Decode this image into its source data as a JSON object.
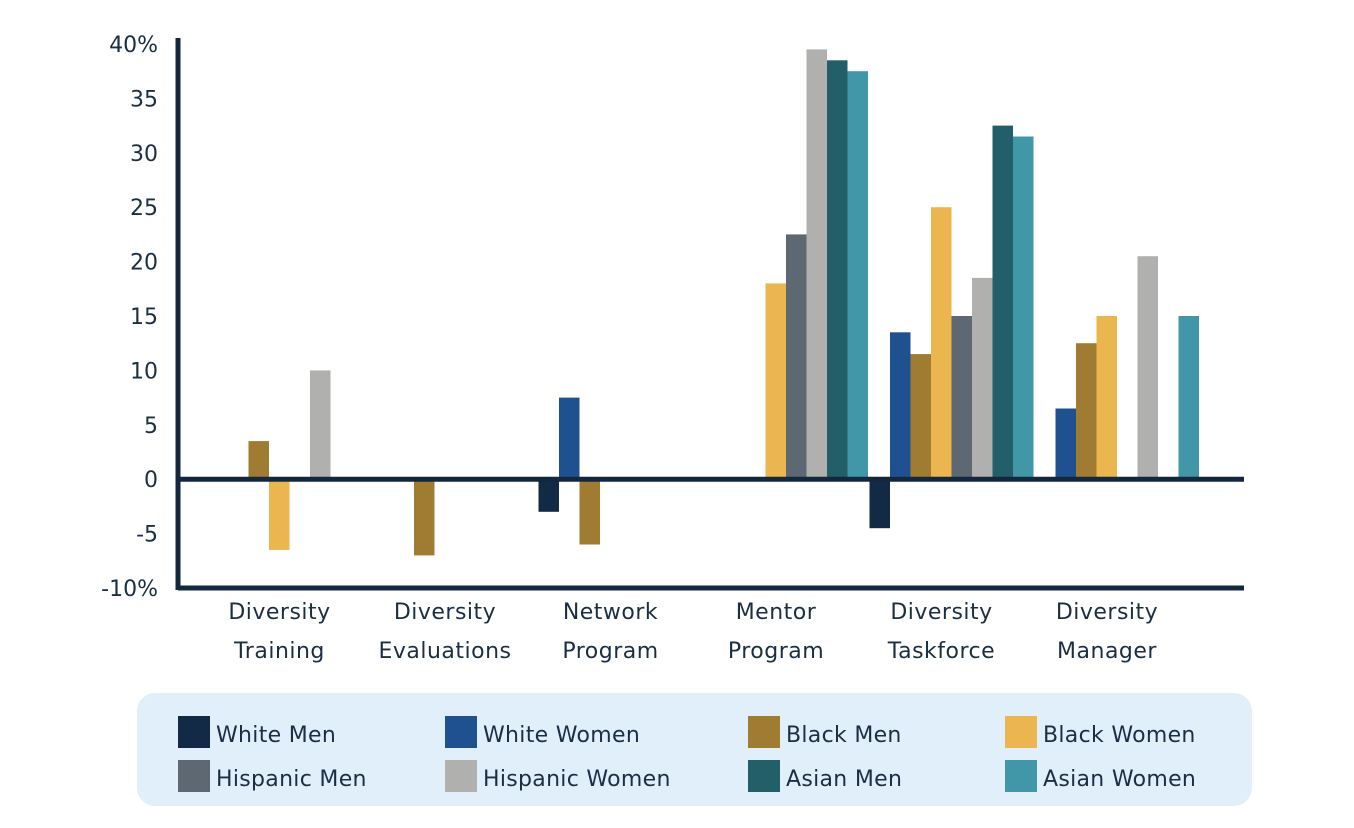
{
  "chart_data": {
    "type": "bar",
    "title": "",
    "xlabel": "",
    "ylabel": "",
    "ylim": [
      -10,
      40
    ],
    "yticks": [
      {
        "value": 40,
        "label": "40%"
      },
      {
        "value": 35,
        "label": "35"
      },
      {
        "value": 30,
        "label": "30"
      },
      {
        "value": 25,
        "label": "25"
      },
      {
        "value": 20,
        "label": "20"
      },
      {
        "value": 15,
        "label": "15"
      },
      {
        "value": 10,
        "label": "10"
      },
      {
        "value": 5,
        "label": "5"
      },
      {
        "value": 0,
        "label": "0"
      },
      {
        "value": -5,
        "label": "-5"
      },
      {
        "value": -10,
        "label": "-10%"
      }
    ],
    "categories": [
      [
        "Diversity",
        "Training"
      ],
      [
        "Diversity",
        "Evaluations"
      ],
      [
        "Network",
        "Program"
      ],
      [
        "Mentor",
        "Program"
      ],
      [
        "Diversity",
        "Taskforce"
      ],
      [
        "Diversity",
        "Manager"
      ]
    ],
    "series": [
      {
        "name": "White Men",
        "color": "#132a47",
        "values": [
          0,
          0,
          -3,
          0,
          -4.5,
          0
        ]
      },
      {
        "name": "White Women",
        "color": "#1f5190",
        "values": [
          0,
          0,
          7.5,
          0,
          13.5,
          6.5
        ]
      },
      {
        "name": "Black Men",
        "color": "#a07c33",
        "values": [
          3.5,
          -7,
          -6,
          0,
          11.5,
          12.5
        ]
      },
      {
        "name": "Black Women",
        "color": "#ebb650",
        "values": [
          -6.5,
          0,
          0,
          18,
          25,
          15
        ]
      },
      {
        "name": "Hispanic Men",
        "color": "#5d6872",
        "values": [
          0,
          0,
          0,
          22.5,
          15,
          0
        ]
      },
      {
        "name": "Hispanic Women",
        "color": "#b0b0ae",
        "values": [
          10,
          0,
          0,
          39.5,
          18.5,
          20.5
        ]
      },
      {
        "name": "Asian Men",
        "color": "#225f69",
        "values": [
          0,
          0,
          0,
          38.5,
          32.5,
          0
        ]
      },
      {
        "name": "Asian Women",
        "color": "#4196a8",
        "values": [
          0,
          0,
          0,
          37.5,
          31.5,
          15
        ]
      }
    ],
    "legend": "bottom"
  }
}
